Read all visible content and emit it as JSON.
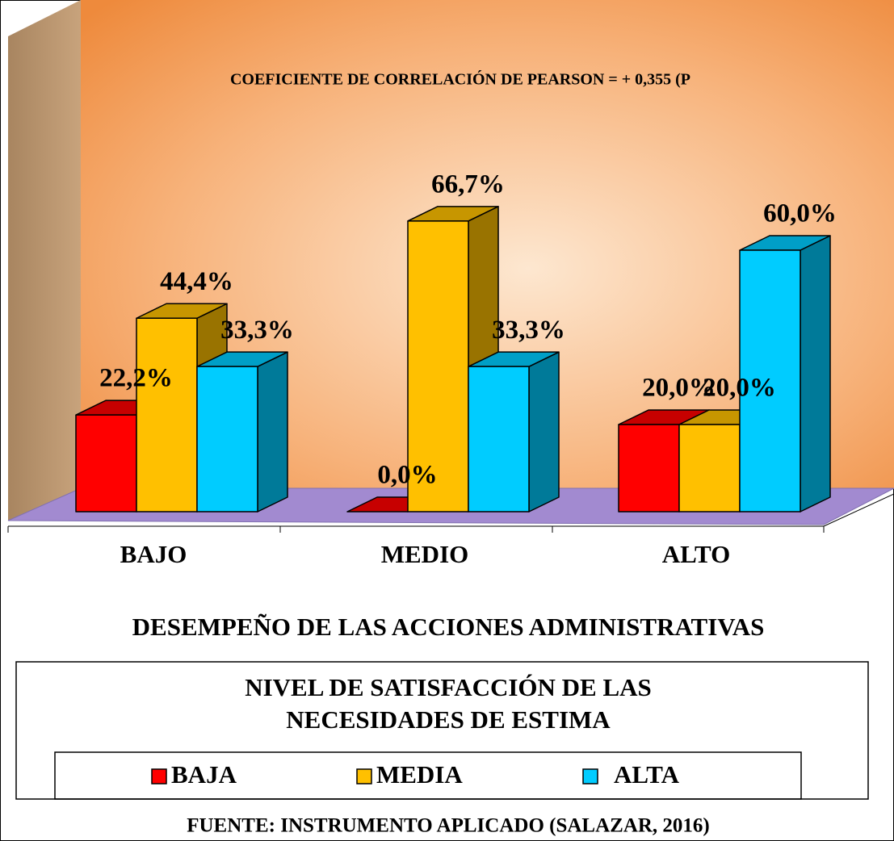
{
  "chart_data": {
    "type": "bar3d",
    "annotation": "COEFICIENTE DE CORRELACIÓN DE PEARSON = + 0,355 (P",
    "categories": [
      "BAJO",
      "MEDIO",
      "ALTO"
    ],
    "series": [
      {
        "name": "BAJA",
        "color": "#ff0000",
        "values": [
          22.2,
          0.0,
          20.0
        ],
        "value_labels": [
          "22,2%",
          "0,0%",
          "20,0%"
        ]
      },
      {
        "name": "MEDIA",
        "color": "#ffc000",
        "values": [
          44.4,
          66.7,
          20.0
        ],
        "value_labels": [
          "44,4%",
          "66,7%",
          "20,0%"
        ]
      },
      {
        "name": "ALTA",
        "color": "#00ccff",
        "values": [
          33.3,
          33.3,
          60.0
        ],
        "value_labels": [
          "33,3%",
          "33,3%",
          "60,0%"
        ]
      }
    ],
    "x_label": "DESEMPEÑO DE LAS ACCIONES ADMINISTRATIVAS",
    "legend_title": [
      "NIVEL DE SATISFACCIÓN DE LAS",
      "NECESIDADES DE ESTIMA"
    ],
    "source": "FUENTE: INSTRUMENTO APLICADO (SALAZAR, 2016)"
  }
}
